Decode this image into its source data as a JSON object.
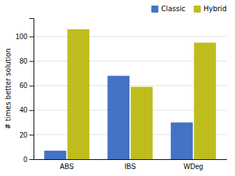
{
  "chart_data": {
    "type": "bar",
    "categories": [
      "ABS",
      "IBS",
      "WDeg"
    ],
    "series": [
      {
        "name": "Classic",
        "color": "#4472c4",
        "values": [
          7,
          68,
          30
        ]
      },
      {
        "name": "Hybrid",
        "color": "#bfbd1e",
        "values": [
          106,
          59,
          95
        ]
      }
    ],
    "ylabel": "# times better solution",
    "ylim": [
      0,
      115
    ],
    "yticks": [
      0,
      20,
      40,
      60,
      80,
      100
    ],
    "grid": true,
    "legend": "upper-right"
  }
}
